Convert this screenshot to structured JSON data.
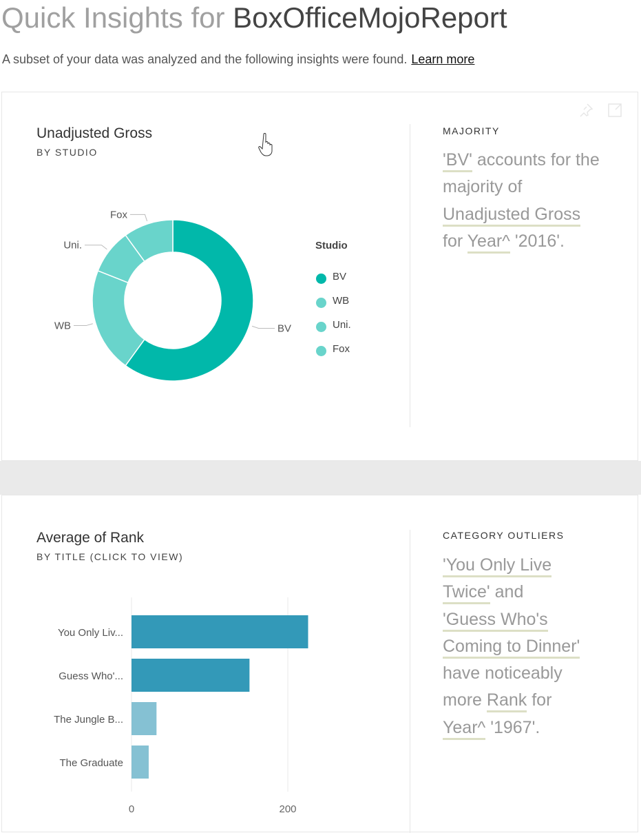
{
  "header": {
    "title_prefix": "Quick Insights for",
    "dataset": "BoxOfficeMojoReport",
    "subtitle": "A subset of your data was analyzed and the following insights were found.",
    "learn_more": "Learn more"
  },
  "cards": [
    {
      "title": "Unadjusted Gross",
      "subtitle": "BY STUDIO",
      "insight_type": "MAJORITY",
      "insight_parts": [
        "'BV'",
        " accounts for the majority of ",
        "Unadjusted Gross",
        " for ",
        "Year^",
        " '2016'."
      ],
      "legend_title": "Studio"
    },
    {
      "title": "Average of Rank",
      "subtitle": "BY TITLE (CLICK TO VIEW)",
      "insight_type": "CATEGORY OUTLIERS",
      "insight_parts": [
        "'You Only Live Twice'",
        " and ",
        "'Guess Who's Coming to Dinner'",
        " have noticeably more ",
        "Rank",
        " for ",
        "Year^",
        " '1967'."
      ]
    }
  ],
  "colors": {
    "bv": "#01b8aa",
    "others": "#69d4cb",
    "bar_dark": "#3399b8",
    "bar_light": "#85c1d3",
    "highlight": "#dcdfc5"
  },
  "chart_data": [
    {
      "type": "pie",
      "title": "Unadjusted Gross",
      "subtitle": "BY STUDIO",
      "legend_title": "Studio",
      "legend_position": "right",
      "categories": [
        "BV",
        "WB",
        "Uni.",
        "Fox"
      ],
      "values": [
        60,
        21,
        9,
        10
      ]
    },
    {
      "type": "bar",
      "orientation": "horizontal",
      "title": "Average of Rank",
      "subtitle": "BY TITLE (CLICK TO VIEW)",
      "categories": [
        "You Only Liv...",
        "Guess Who'...",
        "The Jungle B...",
        "The Graduate"
      ],
      "values": [
        226,
        151,
        32,
        22
      ],
      "highlighted": [
        true,
        true,
        false,
        false
      ],
      "x_ticks": [
        "0",
        "200"
      ],
      "xlim": [
        0,
        300
      ]
    }
  ]
}
